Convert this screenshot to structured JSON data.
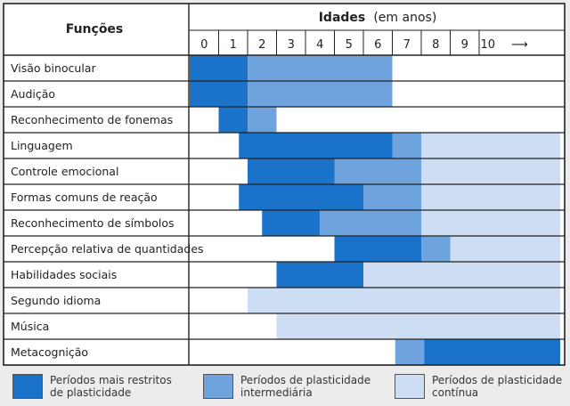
{
  "chart_data": {
    "type": "gantt",
    "header": {
      "functions_title": "Funções",
      "ages_title": "Idades",
      "ages_unit": "(em anos)"
    },
    "ticks": [
      "0",
      "1",
      "2",
      "3",
      "4",
      "5",
      "6",
      "7",
      "8",
      "9",
      "10"
    ],
    "arrow": "⟶",
    "xlim": [
      0,
      12.8
    ],
    "colors": {
      "restricted": "#1a73c9",
      "intermediate": "#6fa3dd",
      "continuous": "#cdddf3",
      "grid": "#222222",
      "white": "#ffffff"
    },
    "rows": [
      {
        "label": "Visão binocular",
        "segments": [
          {
            "start": 0,
            "end": 2,
            "level": "restricted"
          },
          {
            "start": 2,
            "end": 7,
            "level": "intermediate"
          }
        ]
      },
      {
        "label": "Audição",
        "segments": [
          {
            "start": 0,
            "end": 2,
            "level": "restricted"
          },
          {
            "start": 2,
            "end": 7,
            "level": "intermediate"
          }
        ]
      },
      {
        "label": "Reconhecimento de fonemas",
        "segments": [
          {
            "start": 1,
            "end": 2,
            "level": "restricted"
          },
          {
            "start": 2,
            "end": 3,
            "level": "intermediate"
          }
        ]
      },
      {
        "label": "Linguagem",
        "segments": [
          {
            "start": 1.7,
            "end": 7,
            "level": "restricted"
          },
          {
            "start": 7,
            "end": 8,
            "level": "intermediate"
          },
          {
            "start": 8,
            "end": 12.8,
            "level": "continuous"
          }
        ]
      },
      {
        "label": "Controle emocional",
        "segments": [
          {
            "start": 2,
            "end": 5,
            "level": "restricted"
          },
          {
            "start": 5,
            "end": 8,
            "level": "intermediate"
          },
          {
            "start": 8,
            "end": 12.8,
            "level": "continuous"
          }
        ]
      },
      {
        "label": "Formas comuns de reação",
        "segments": [
          {
            "start": 1.7,
            "end": 6,
            "level": "restricted"
          },
          {
            "start": 6,
            "end": 8,
            "level": "intermediate"
          },
          {
            "start": 8,
            "end": 12.8,
            "level": "continuous"
          }
        ]
      },
      {
        "label": "Reconhecimento de símbolos",
        "segments": [
          {
            "start": 2.5,
            "end": 4.5,
            "level": "restricted"
          },
          {
            "start": 4.5,
            "end": 8,
            "level": "intermediate"
          },
          {
            "start": 8,
            "end": 12.8,
            "level": "continuous"
          }
        ]
      },
      {
        "label": "Percepção relativa de quantidades",
        "segments": [
          {
            "start": 5,
            "end": 8,
            "level": "restricted"
          },
          {
            "start": 8,
            "end": 9,
            "level": "intermediate"
          },
          {
            "start": 9,
            "end": 12.8,
            "level": "continuous"
          }
        ]
      },
      {
        "label": "Habilidades sociais",
        "segments": [
          {
            "start": 3,
            "end": 6,
            "level": "restricted"
          },
          {
            "start": 6,
            "end": 12.8,
            "level": "continuous"
          }
        ]
      },
      {
        "label": "Segundo idioma",
        "segments": [
          {
            "start": 2,
            "end": 12.8,
            "level": "continuous"
          }
        ]
      },
      {
        "label": "Música",
        "segments": [
          {
            "start": 3,
            "end": 12.8,
            "level": "continuous"
          }
        ]
      },
      {
        "label": "Metacognição",
        "segments": [
          {
            "start": 7.1,
            "end": 8.1,
            "level": "intermediate"
          },
          {
            "start": 8.1,
            "end": 12.8,
            "level": "restricted"
          }
        ]
      }
    ],
    "legend": [
      {
        "level": "restricted",
        "text": "Períodos mais restritos\nde plasticidade"
      },
      {
        "level": "intermediate",
        "text": "Períodos de plasticidade\nintermediária"
      },
      {
        "level": "continuous",
        "text": "Períodos de plasticidade\ncontínua"
      }
    ]
  }
}
